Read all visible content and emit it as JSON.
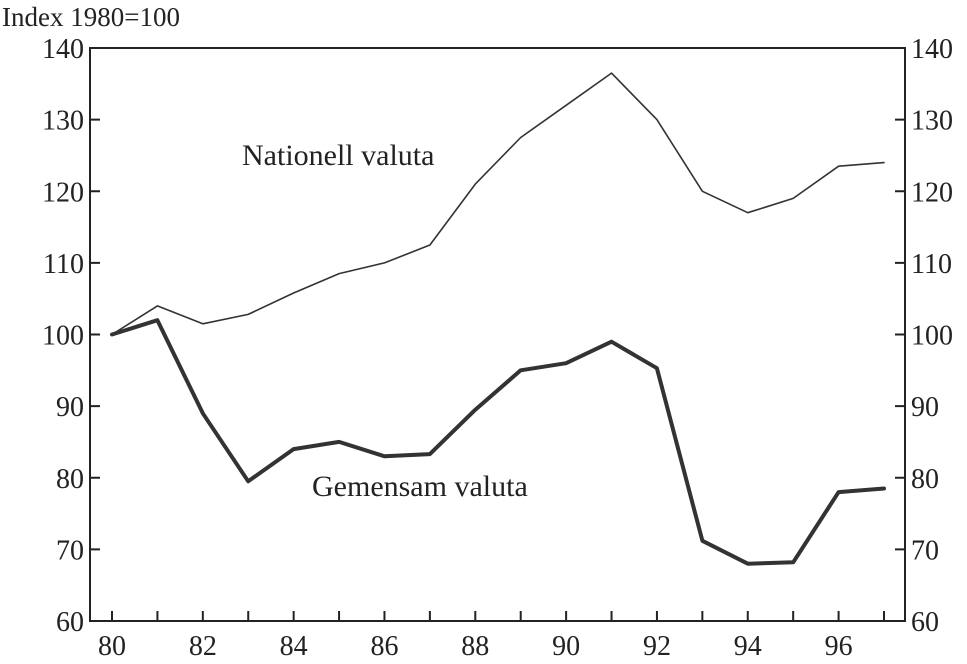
{
  "chart_data": {
    "type": "line",
    "ylabel": "Index 1980=100",
    "ylim": [
      60,
      140
    ],
    "xlim": [
      1980,
      1997
    ],
    "yticks": [
      60,
      70,
      80,
      90,
      100,
      110,
      120,
      130,
      140
    ],
    "xticks": [
      {
        "value": 1980,
        "label": "80"
      },
      {
        "value": 1982,
        "label": "82"
      },
      {
        "value": 1984,
        "label": "84"
      },
      {
        "value": 1986,
        "label": "86"
      },
      {
        "value": 1988,
        "label": "88"
      },
      {
        "value": 1990,
        "label": "90"
      },
      {
        "value": 1992,
        "label": "92"
      },
      {
        "value": 1994,
        "label": "94"
      },
      {
        "value": 1996,
        "label": "96"
      }
    ],
    "x": [
      1980,
      1981,
      1982,
      1983,
      1984,
      1985,
      1986,
      1987,
      1988,
      1989,
      1990,
      1991,
      1992,
      1993,
      1994,
      1995,
      1996,
      1997
    ],
    "series": [
      {
        "name": "Nationell valuta",
        "values": [
          100,
          104,
          101.5,
          102.8,
          105.8,
          108.5,
          110,
          112.5,
          121,
          127.5,
          132,
          136.5,
          130,
          120,
          117,
          119,
          123.5,
          124
        ],
        "color": "#333333",
        "width": 1.6
      },
      {
        "name": "Gemensam valuta",
        "values": [
          100,
          102,
          89,
          79.5,
          84,
          85,
          83,
          83.3,
          89.5,
          95,
          96,
          99,
          95.3,
          71.2,
          68,
          68.2,
          78,
          78.5
        ],
        "color": "#333333",
        "width": 4
      }
    ],
    "grid": false,
    "secondary_y_axis": true
  }
}
